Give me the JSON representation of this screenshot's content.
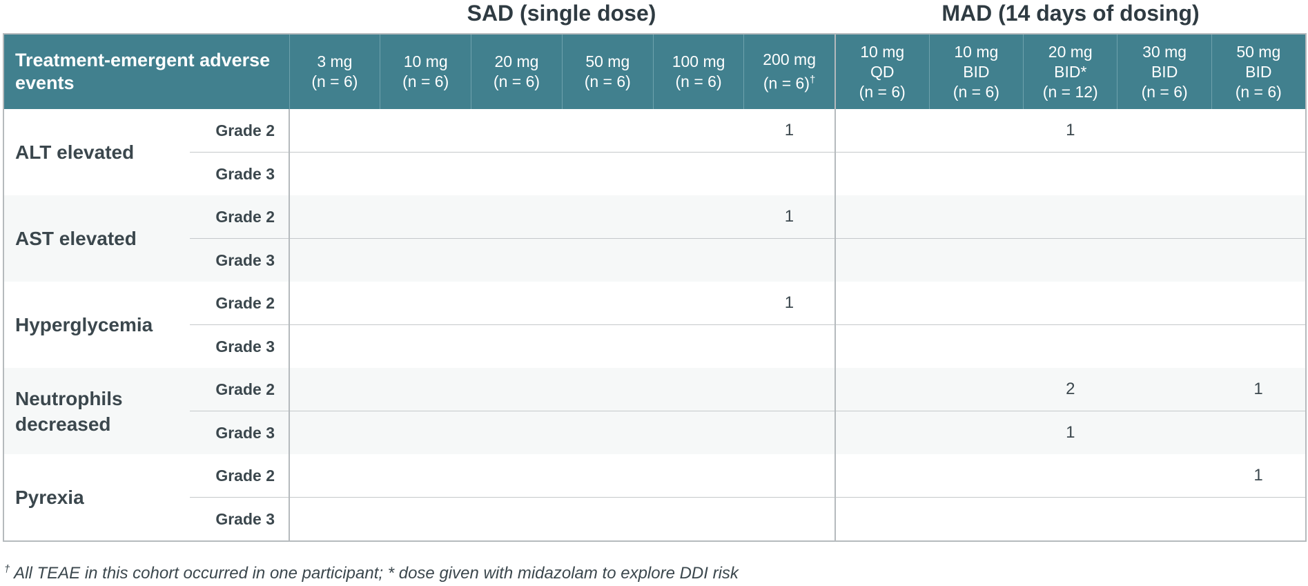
{
  "header": {
    "groups": [
      "SAD (single dose)",
      "MAD (14 days of dosing)"
    ]
  },
  "table": {
    "corner": "Treatment-emergent adverse events",
    "columns": [
      {
        "group": 0,
        "lines": [
          "3 mg",
          "(n = 6)"
        ]
      },
      {
        "group": 0,
        "lines": [
          "10 mg",
          "(n = 6)"
        ]
      },
      {
        "group": 0,
        "lines": [
          "20 mg",
          "(n = 6)"
        ]
      },
      {
        "group": 0,
        "lines": [
          "50 mg",
          "(n = 6)"
        ]
      },
      {
        "group": 0,
        "lines": [
          "100 mg",
          "(n = 6)"
        ]
      },
      {
        "group": 0,
        "lines": [
          "200 mg",
          "(n = 6)"
        ],
        "note": "†"
      },
      {
        "group": 1,
        "lines": [
          "10 mg",
          "QD",
          "(n = 6)"
        ]
      },
      {
        "group": 1,
        "lines": [
          "10 mg",
          "BID",
          "(n = 6)"
        ]
      },
      {
        "group": 1,
        "lines": [
          "20 mg",
          "BID*",
          "(n = 12)"
        ]
      },
      {
        "group": 1,
        "lines": [
          "30 mg",
          "BID",
          "(n = 6)"
        ]
      },
      {
        "group": 1,
        "lines": [
          "50 mg",
          "BID",
          "(n = 6)"
        ]
      }
    ],
    "events": [
      {
        "name": "ALT elevated",
        "grades": [
          {
            "grade": "Grade 2",
            "cells": [
              null,
              null,
              null,
              null,
              null,
              1,
              null,
              null,
              1,
              null,
              null
            ]
          },
          {
            "grade": "Grade 3",
            "cells": [
              null,
              null,
              null,
              null,
              null,
              null,
              null,
              null,
              null,
              null,
              null
            ]
          }
        ]
      },
      {
        "name": "AST elevated",
        "grades": [
          {
            "grade": "Grade 2",
            "cells": [
              null,
              null,
              null,
              null,
              null,
              1,
              null,
              null,
              null,
              null,
              null
            ]
          },
          {
            "grade": "Grade 3",
            "cells": [
              null,
              null,
              null,
              null,
              null,
              null,
              null,
              null,
              null,
              null,
              null
            ]
          }
        ]
      },
      {
        "name": "Hyperglycemia",
        "grades": [
          {
            "grade": "Grade 2",
            "cells": [
              null,
              null,
              null,
              null,
              null,
              1,
              null,
              null,
              null,
              null,
              null
            ]
          },
          {
            "grade": "Grade 3",
            "cells": [
              null,
              null,
              null,
              null,
              null,
              null,
              null,
              null,
              null,
              null,
              null
            ]
          }
        ]
      },
      {
        "name": "Neutrophils decreased",
        "grades": [
          {
            "grade": "Grade 2",
            "cells": [
              null,
              null,
              null,
              null,
              null,
              null,
              null,
              null,
              2,
              null,
              1
            ]
          },
          {
            "grade": "Grade 3",
            "cells": [
              null,
              null,
              null,
              null,
              null,
              null,
              null,
              null,
              1,
              null,
              null
            ]
          }
        ]
      },
      {
        "name": "Pyrexia",
        "grades": [
          {
            "grade": "Grade 2",
            "cells": [
              null,
              null,
              null,
              null,
              null,
              null,
              null,
              null,
              null,
              null,
              1
            ]
          },
          {
            "grade": "Grade 3",
            "cells": [
              null,
              null,
              null,
              null,
              null,
              null,
              null,
              null,
              null,
              null,
              null
            ]
          }
        ]
      }
    ]
  },
  "footnote": {
    "mark": "†",
    "text": "All TEAE in this cohort occurred in one participant; * dose given with midazolam to explore DDI risk"
  }
}
